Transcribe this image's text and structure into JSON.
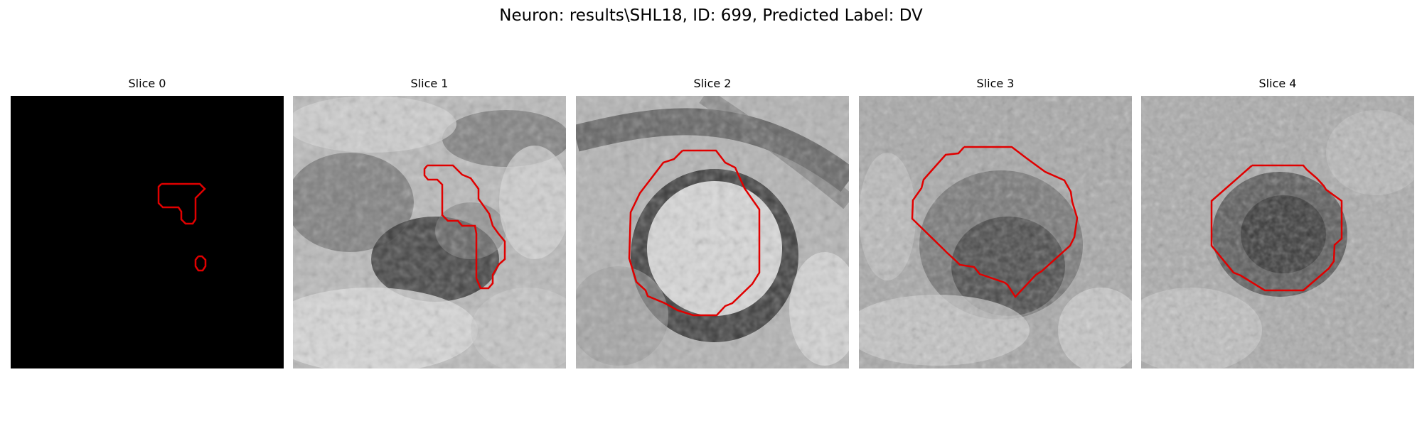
{
  "figure": {
    "title": "Neuron: results\\SHL18, ID: 699, Predicted Label: DV"
  },
  "panels": [
    {
      "title": "Slice 0",
      "background": "black"
    },
    {
      "title": "Slice 1",
      "background": "grayscale-texture"
    },
    {
      "title": "Slice 2",
      "background": "grayscale-texture"
    },
    {
      "title": "Slice 3",
      "background": "grayscale-texture"
    },
    {
      "title": "Slice 4",
      "background": "grayscale-texture"
    }
  ],
  "colors": {
    "contour": "#e00000",
    "background": "#ffffff"
  }
}
